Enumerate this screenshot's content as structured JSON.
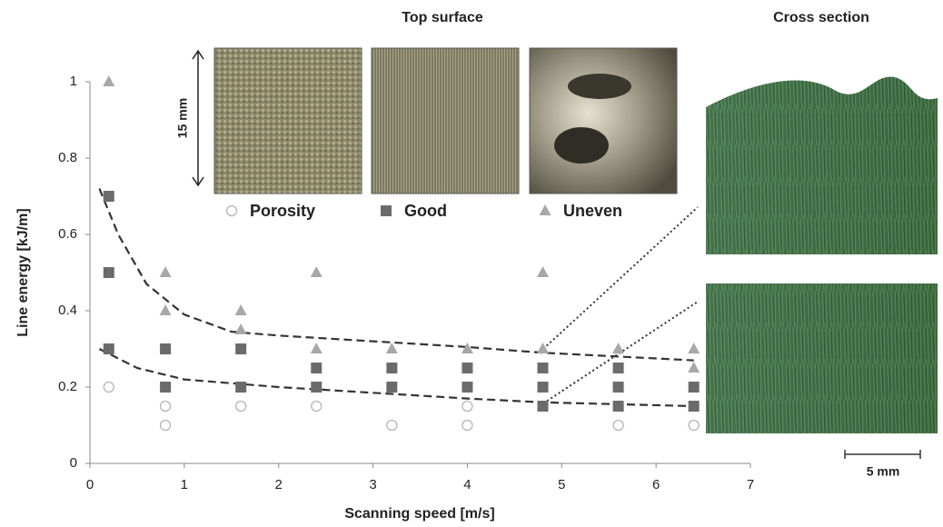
{
  "chart_data": {
    "type": "scatter",
    "x_label": "Scanning speed [m/s]",
    "y_label": "Line energy [kJ/m]",
    "xlim": [
      0,
      7
    ],
    "xticks": [
      0,
      1,
      2,
      3,
      4,
      5,
      6,
      7
    ],
    "ylim": [
      0,
      1
    ],
    "yticks": [
      0,
      0.2,
      0.4,
      0.6,
      0.8,
      1
    ],
    "series": [
      {
        "name": "Porosity",
        "marker": "circle",
        "color": "#b5b5b5",
        "x": [
          0.2,
          0.8,
          0.8,
          0.8,
          1.6,
          2.4,
          3.2,
          4.0,
          4.0,
          5.6,
          6.4
        ],
        "values": [
          0.2,
          0.2,
          0.15,
          0.1,
          0.15,
          0.15,
          0.1,
          0.15,
          0.1,
          0.1,
          0.1
        ]
      },
      {
        "name": "Good",
        "marker": "square",
        "color": "#6b6b6b",
        "x": [
          0.2,
          0.2,
          0.2,
          0.8,
          0.8,
          1.6,
          1.6,
          2.4,
          2.4,
          3.2,
          3.2,
          4.0,
          4.0,
          4.8,
          4.8,
          4.8,
          5.6,
          5.6,
          5.6,
          6.4,
          6.4
        ],
        "values": [
          0.7,
          0.5,
          0.3,
          0.3,
          0.2,
          0.3,
          0.2,
          0.25,
          0.2,
          0.25,
          0.2,
          0.25,
          0.2,
          0.25,
          0.2,
          0.15,
          0.25,
          0.2,
          0.15,
          0.2,
          0.15
        ]
      },
      {
        "name": "Uneven",
        "marker": "triangle",
        "color": "#a8a8a8",
        "x": [
          0.2,
          0.8,
          0.8,
          1.6,
          1.6,
          2.4,
          2.4,
          3.2,
          4.0,
          4.8,
          4.8,
          5.6,
          6.4,
          6.4
        ],
        "values": [
          1.0,
          0.5,
          0.4,
          0.4,
          0.35,
          0.5,
          0.3,
          0.3,
          0.3,
          0.5,
          0.3,
          0.3,
          0.3,
          0.25
        ]
      }
    ],
    "curves": [
      {
        "x": [
          0.1,
          0.3,
          0.6,
          1.0,
          1.5,
          2.0,
          3.0,
          4.0,
          4.8,
          6.4
        ],
        "values": [
          0.72,
          0.6,
          0.47,
          0.39,
          0.345,
          0.335,
          0.32,
          0.305,
          0.29,
          0.27
        ]
      },
      {
        "x": [
          0.1,
          0.5,
          1.0,
          2.0,
          3.0,
          4.0,
          4.8,
          6.4
        ],
        "values": [
          0.3,
          0.25,
          0.22,
          0.2,
          0.185,
          0.17,
          0.16,
          0.15
        ]
      }
    ],
    "top_surface_label": "Top surface",
    "cross_section_label": "Cross section",
    "size_label": "15 mm",
    "scale_bar_label": "5 mm"
  }
}
